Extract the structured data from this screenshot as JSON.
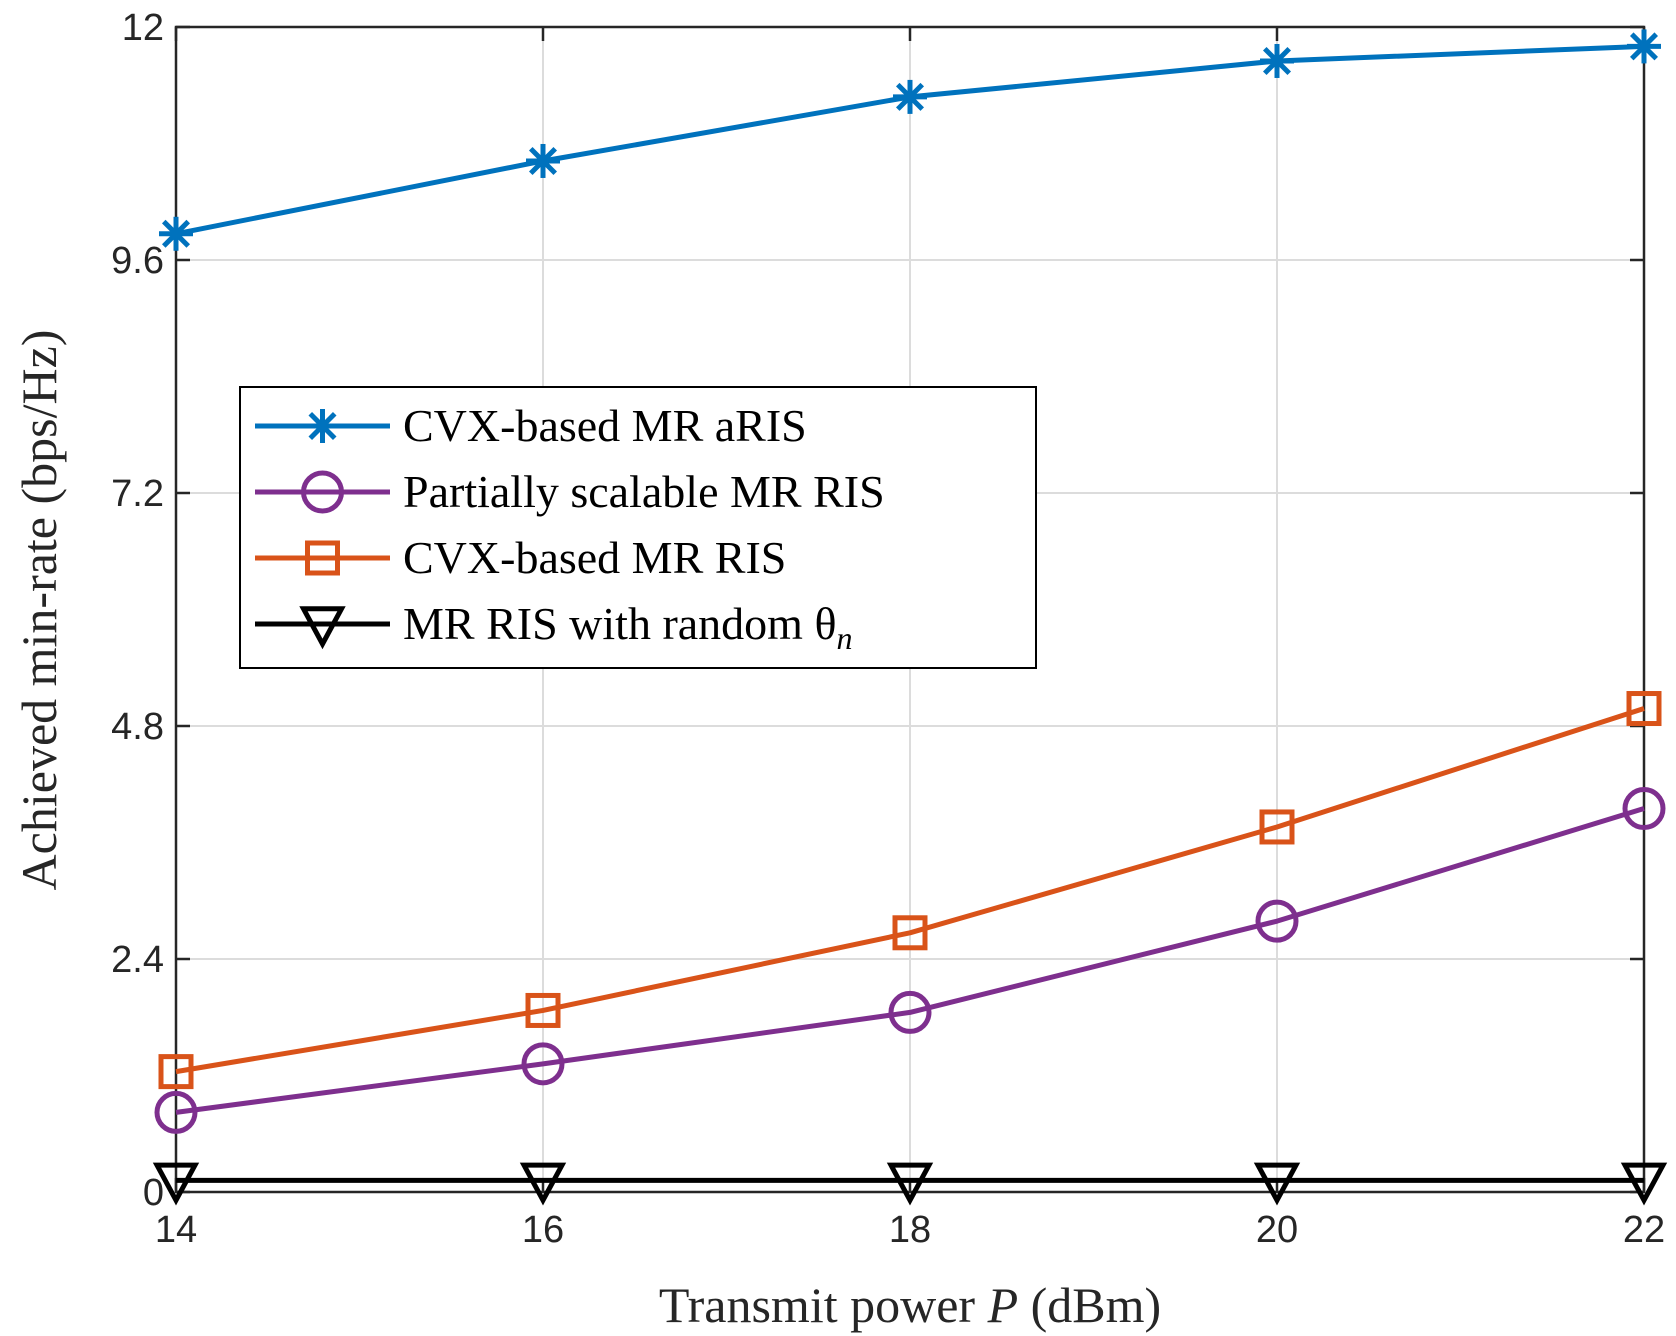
{
  "chart_data": {
    "type": "line",
    "xlabel_prefix": "Transmit power ",
    "xlabel_var": "P",
    "xlabel_suffix": " (dBm)",
    "ylabel": "Achieved min-rate (bps/Hz)",
    "xlim": [
      14,
      22
    ],
    "ylim": [
      0,
      12
    ],
    "xticks": [
      14,
      16,
      18,
      20,
      22
    ],
    "xtick_labels": [
      "14",
      "16",
      "18",
      "20",
      "22"
    ],
    "yticks": [
      0,
      2.4,
      4.8,
      7.2,
      9.6,
      12
    ],
    "ytick_labels": [
      "0",
      "2.4",
      "4.8",
      "7.2",
      "9.6",
      "12"
    ],
    "grid": true,
    "legend_position": "center-left",
    "x": [
      14,
      16,
      18,
      20,
      22
    ],
    "series": [
      {
        "name": "CVX-based MR aRIS",
        "label_main": "CVX-based MR aRIS",
        "label_sub": "",
        "values": [
          9.87,
          10.62,
          11.28,
          11.65,
          11.8
        ],
        "color": "#0072BD",
        "marker": "asterisk"
      },
      {
        "name": "Partially scalable MR RIS",
        "label_main": "Partially scalable MR RIS",
        "label_sub": "",
        "values": [
          0.82,
          1.32,
          1.85,
          2.79,
          3.95
        ],
        "color": "#7E2F8E",
        "marker": "circle"
      },
      {
        "name": "CVX-based MR RIS",
        "label_main": "CVX-based MR RIS",
        "label_sub": "",
        "values": [
          1.24,
          1.87,
          2.67,
          3.76,
          4.98
        ],
        "color": "#D95319",
        "marker": "square"
      },
      {
        "name": "MR RIS with random θn",
        "label_main": "MR RIS with random θ",
        "label_sub": "n",
        "values": [
          0.12,
          0.12,
          0.12,
          0.12,
          0.12
        ],
        "color": "#000000",
        "marker": "triangle-down"
      }
    ]
  }
}
